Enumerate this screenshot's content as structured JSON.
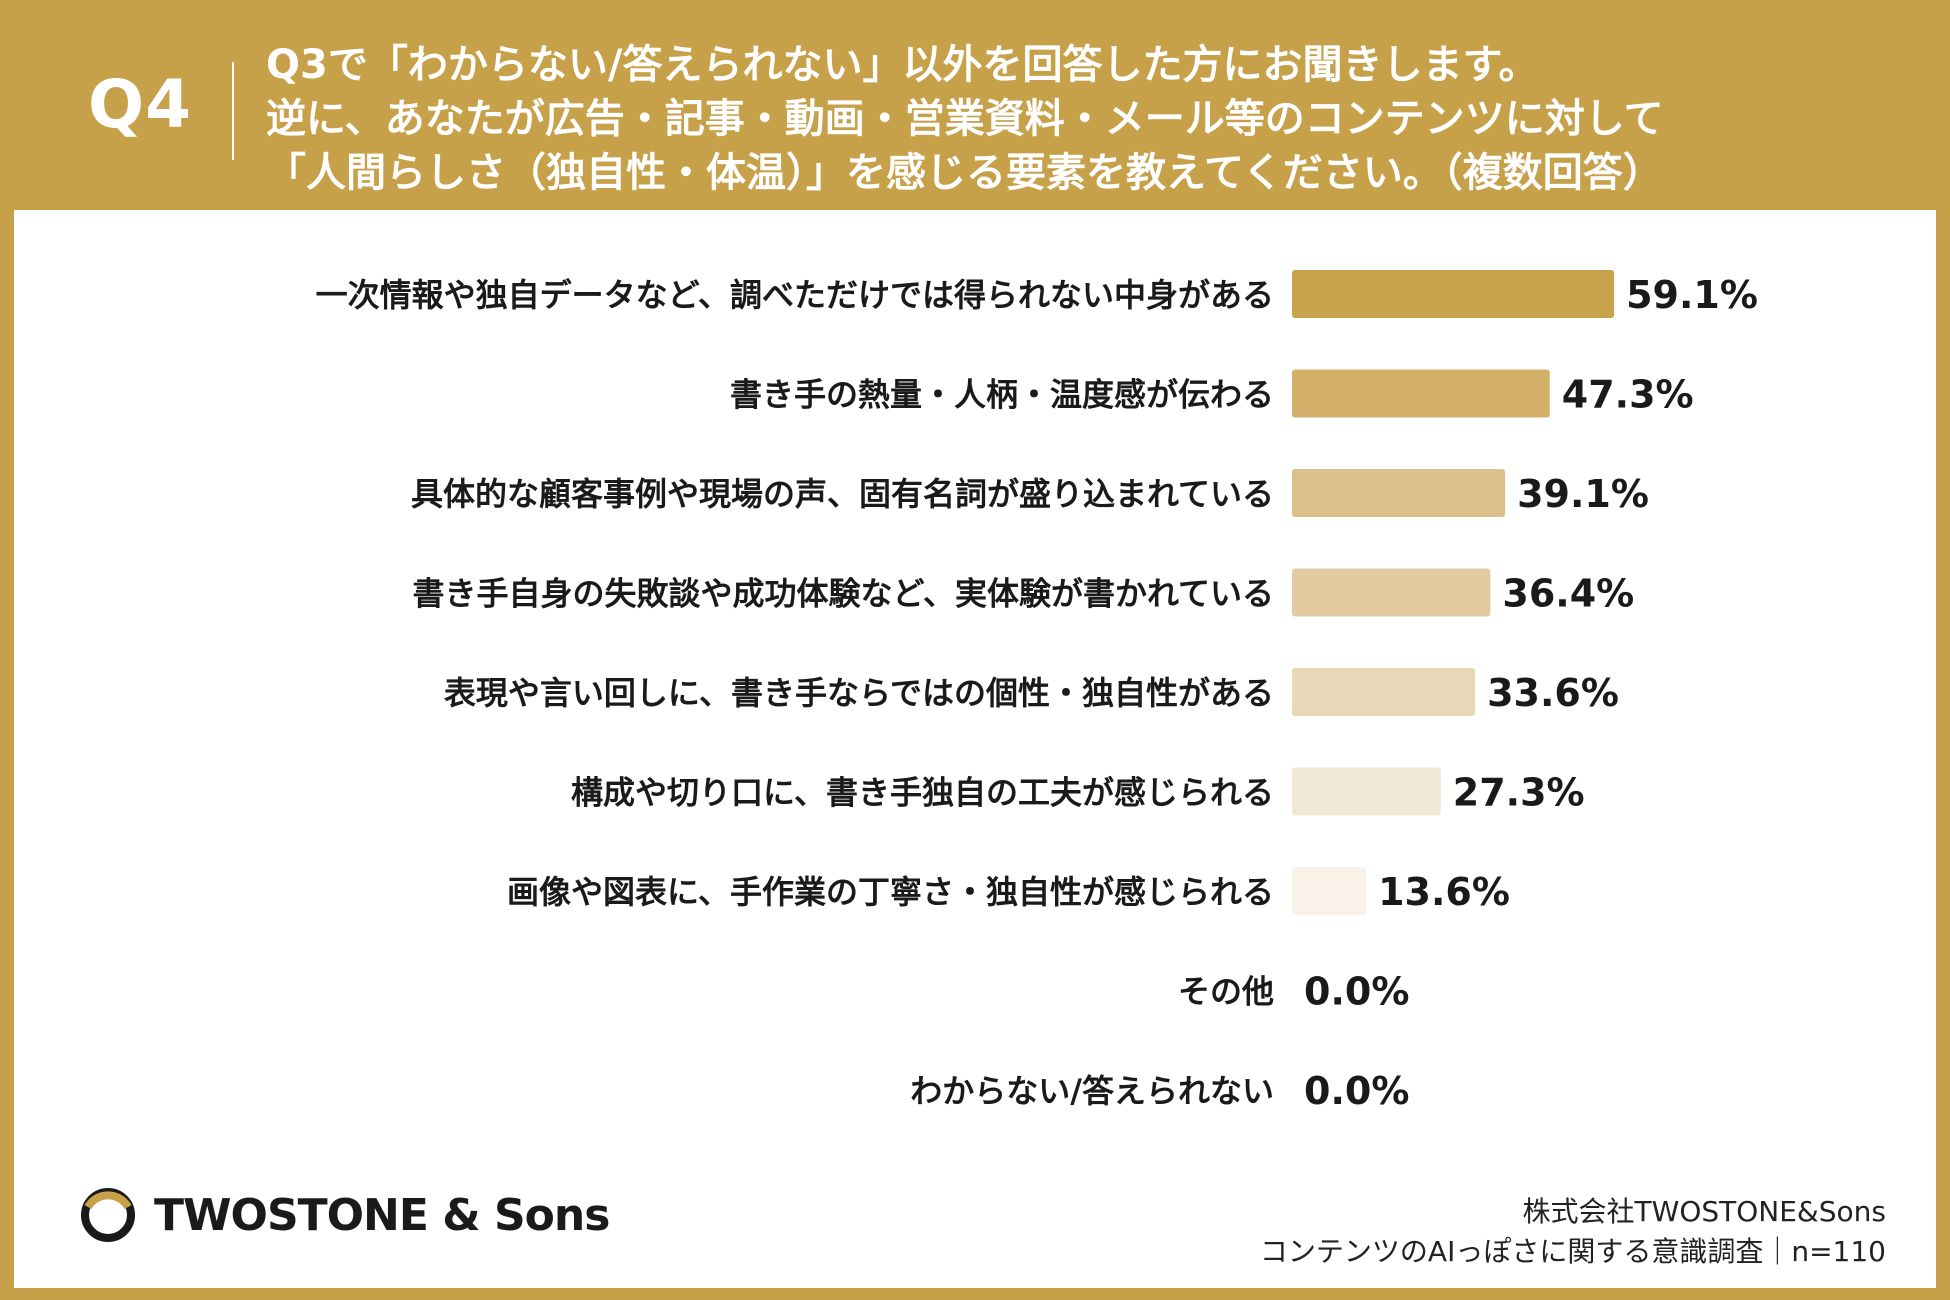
{
  "header": {
    "q_label": "Q4",
    "question_lines": [
      "Q3で「わからない/答えられない」以外を回答した方にお聞きします。",
      "逆に、あなたが広告・記事・動画・営業資料・メール等のコンテンツに対して",
      "「人間らしさ（独自性・体温）」を感じる要素を教えてください。（複数回答）"
    ]
  },
  "chart_data": {
    "type": "bar",
    "orientation": "horizontal",
    "categories": [
      "一次情報や独自データなど、調べただけでは得られない中身がある",
      "書き手の熱量・人柄・温度感が伝わる",
      "具体的な顧客事例や現場の声、固有名詞が盛り込まれている",
      "書き手自身の失敗談や成功体験など、実体験が書かれている",
      "表現や言い回しに、書き手ならではの個性・独自性がある",
      "構成や切り口に、書き手独自の工夫が感じられる",
      "画像や図表に、手作業の丁寧さ・独自性が感じられる",
      "その他",
      "わからない/答えられない"
    ],
    "values": [
      59.1,
      47.3,
      39.1,
      36.4,
      33.6,
      27.3,
      13.6,
      0.0,
      0.0
    ],
    "value_labels": [
      "59.1%",
      "47.3%",
      "39.1%",
      "36.4%",
      "33.6%",
      "27.3%",
      "13.6%",
      "0.0%",
      "0.0%"
    ],
    "bar_colors": [
      "#c9a24d",
      "#d2b06a",
      "#dbc089",
      "#e2cba0",
      "#e9d8b8",
      "#f1e7d5",
      "#f8f2e9",
      "#ffffff",
      "#ffffff"
    ],
    "xlim": [
      0,
      100
    ],
    "grid": false,
    "legend": "none"
  },
  "footer": {
    "logo_text": "TWOSTONE & Sons",
    "source_line1": "株式会社TWOSTONE&Sons",
    "source_line2": "コンテンツのAIっぽさに関する意識調査｜n=110"
  },
  "colors": {
    "frame": "#c7a04a",
    "text": "#1a1a1a"
  }
}
